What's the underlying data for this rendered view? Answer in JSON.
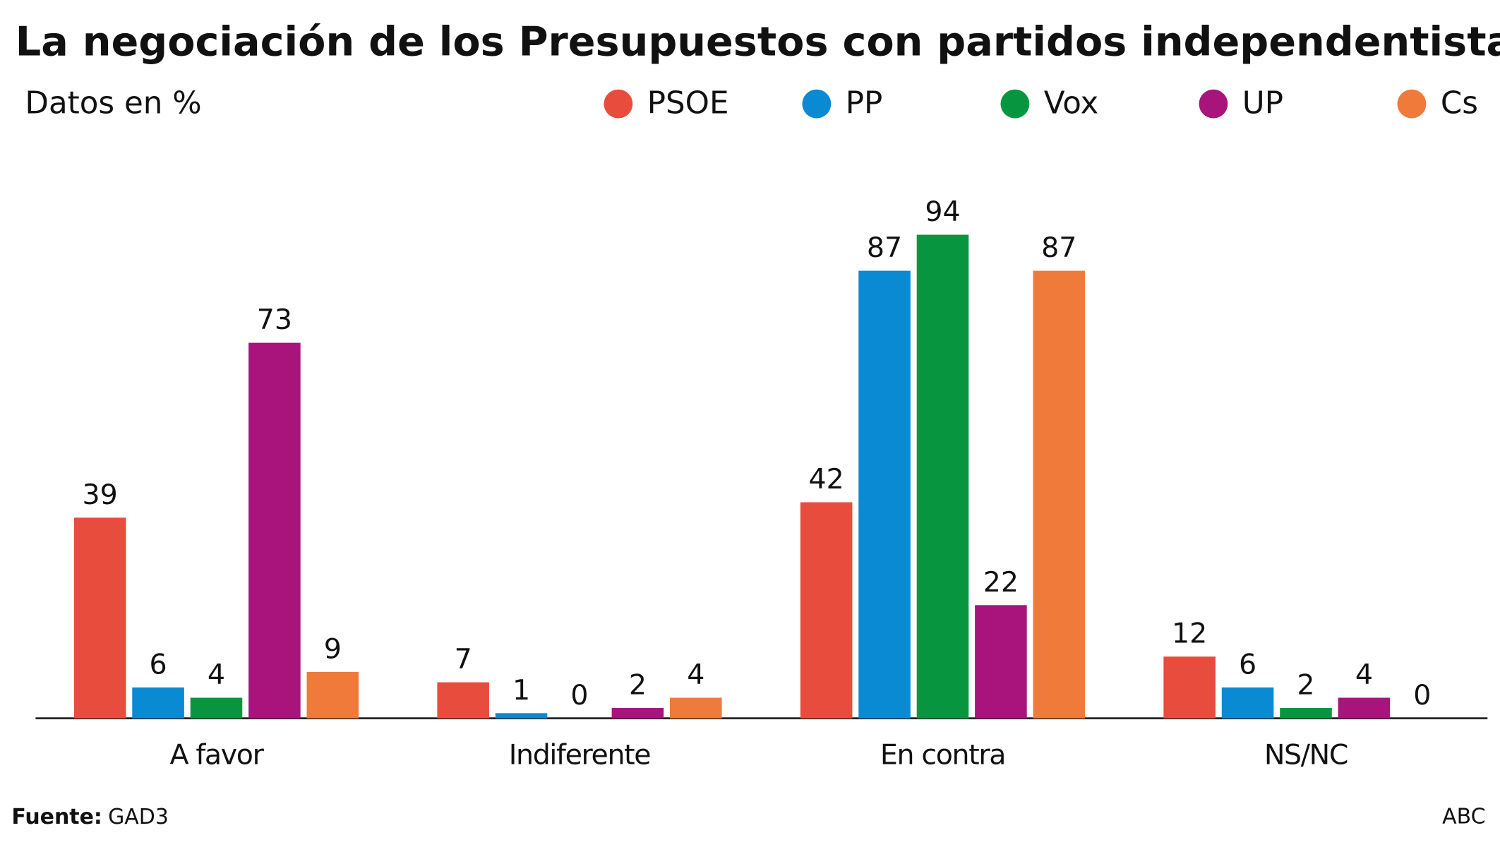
{
  "chart_data": {
    "type": "bar",
    "title": "La negociación de los Presupuestos con partidos independentistas",
    "subtitle": "Datos en %",
    "categories": [
      "A favor",
      "Indiferente",
      "En contra",
      "NS/NC"
    ],
    "series": [
      {
        "name": "PSOE",
        "color": "#e84c3d",
        "values": [
          39,
          7,
          42,
          12
        ]
      },
      {
        "name": "PP",
        "color": "#0a8ad2",
        "values": [
          6,
          1,
          87,
          6
        ]
      },
      {
        "name": "Vox",
        "color": "#07963f",
        "values": [
          4,
          0,
          94,
          2
        ]
      },
      {
        "name": "UP",
        "color": "#a8147b",
        "values": [
          73,
          2,
          22,
          4
        ]
      },
      {
        "name": "Cs",
        "color": "#ef7a3a",
        "values": [
          9,
          4,
          87,
          0
        ]
      }
    ],
    "ylim": [
      0,
      100
    ],
    "source_label": "Fuente:",
    "source": "GAD3",
    "credit": "ABC"
  }
}
